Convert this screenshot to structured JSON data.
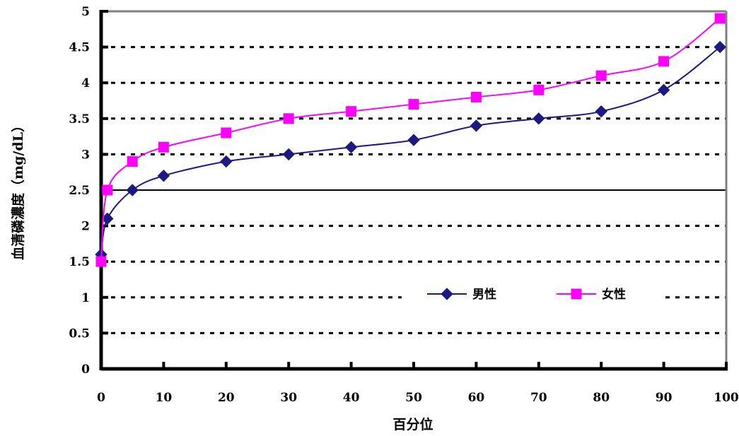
{
  "chart_data": {
    "type": "line",
    "xlabel": "百分位",
    "ylabel": "血清磷濃度（mg/dL）",
    "xlim": [
      0,
      100
    ],
    "ylim": [
      0,
      5
    ],
    "x_ticks": [
      "0",
      "10",
      "20",
      "30",
      "40",
      "50",
      "60",
      "70",
      "80",
      "90",
      "100"
    ],
    "y_ticks": [
      "0",
      "0.5",
      "1",
      "1.5",
      "2",
      "2.5",
      "3",
      "3.5",
      "4",
      "4.5",
      "5"
    ],
    "grid": "horizontal dotted",
    "legend_position": "center-right",
    "x": [
      0,
      1,
      5,
      10,
      20,
      30,
      40,
      50,
      60,
      70,
      80,
      90,
      99
    ],
    "series": [
      {
        "name": "男性",
        "color": "#1a1a80",
        "marker": "diamond",
        "values": [
          1.6,
          2.1,
          2.5,
          2.7,
          2.9,
          3.0,
          3.1,
          3.2,
          3.4,
          3.5,
          3.6,
          3.9,
          4.5
        ]
      },
      {
        "name": "女性",
        "color": "#ff00ff",
        "marker": "square",
        "values": [
          1.5,
          2.5,
          2.9,
          3.1,
          3.3,
          3.5,
          3.6,
          3.7,
          3.8,
          3.9,
          4.1,
          4.3,
          4.9
        ]
      }
    ]
  }
}
